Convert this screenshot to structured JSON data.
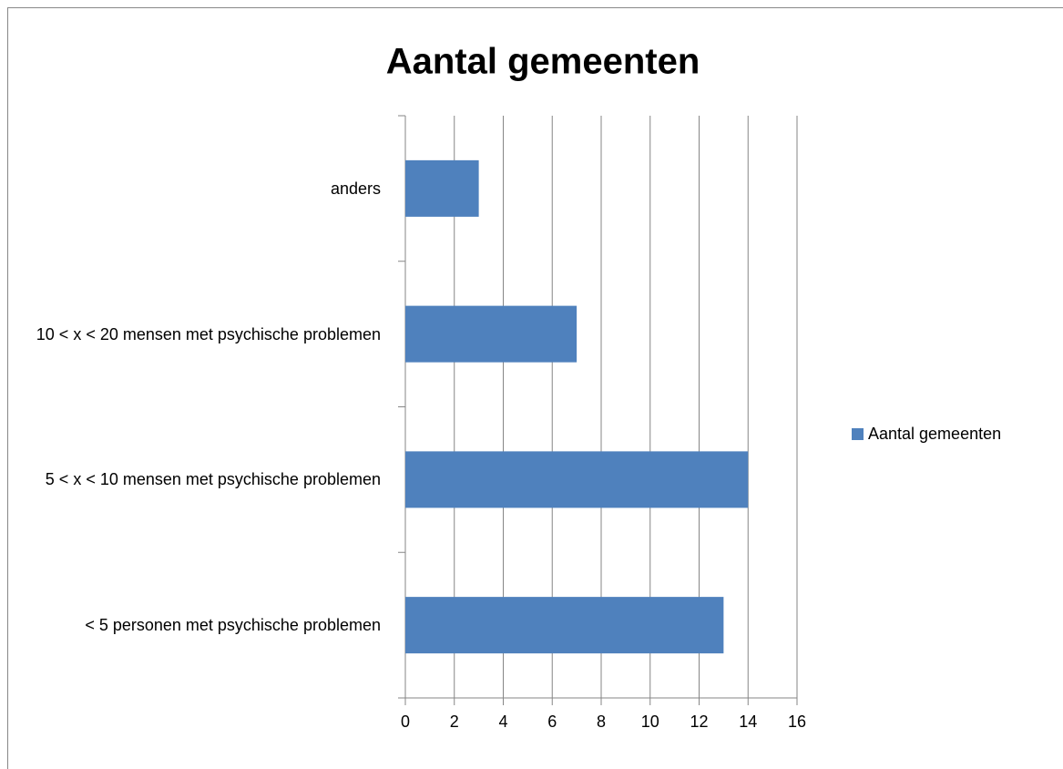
{
  "chart_data": {
    "type": "bar",
    "orientation": "horizontal",
    "title": "Aantal gemeenten",
    "categories": [
      "< 5 personen met psychische problemen",
      "5 < x < 10 mensen met psychische problemen",
      "10 < x < 20 mensen met psychische problemen",
      "anders"
    ],
    "series": [
      {
        "name": "Aantal gemeenten",
        "color": "#4f81bd",
        "values": [
          13,
          14,
          7,
          3
        ]
      }
    ],
    "xlim": [
      0,
      16
    ],
    "xticks": [
      0,
      2,
      4,
      6,
      8,
      10,
      12,
      14,
      16
    ],
    "grid": true,
    "legend": "right"
  }
}
